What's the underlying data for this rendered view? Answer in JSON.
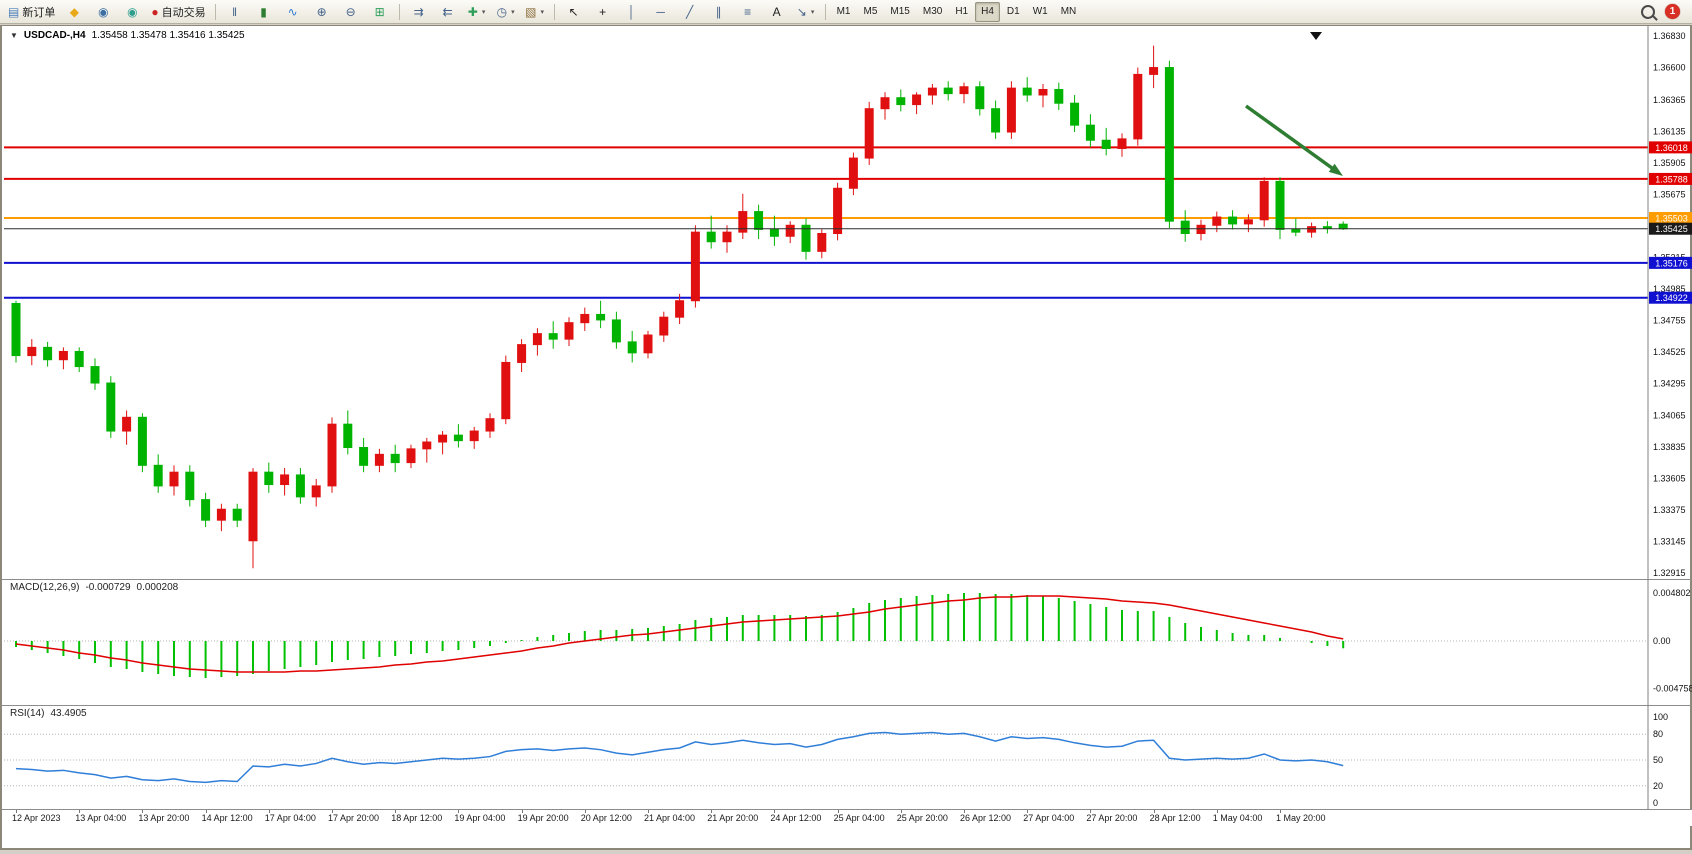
{
  "toolbar": {
    "notification_count": "1",
    "timeframes": [
      "M1",
      "M5",
      "M15",
      "M30",
      "H1",
      "H4",
      "D1",
      "W1",
      "MN"
    ],
    "active_timeframe": "H4",
    "groups": [
      {
        "name": "trade",
        "items": [
          {
            "name": "new-order-button",
            "glyph": "▤",
            "color": "#4a7ebb",
            "label": "新订单"
          },
          {
            "name": "metaeditor-icon",
            "glyph": "◆",
            "color": "#e8a818",
            "label": ""
          },
          {
            "name": "community-icon",
            "glyph": "◉",
            "color": "#3a6ea5",
            "label": ""
          },
          {
            "name": "support-icon",
            "glyph": "◉",
            "color": "#2e9e8f",
            "label": ""
          },
          {
            "name": "autotrading-button",
            "glyph": "●",
            "color": "#cc2222",
            "label": "自动交易"
          }
        ]
      },
      {
        "name": "chart-mode",
        "items": [
          {
            "name": "bar-chart-icon",
            "glyph": "‖",
            "color": "#44628a",
            "label": ""
          },
          {
            "name": "candlestick-chart-icon",
            "glyph": "▮",
            "color": "#2e7d32",
            "label": ""
          },
          {
            "name": "line-chart-icon",
            "glyph": "∿",
            "color": "#2f7ed8",
            "label": ""
          },
          {
            "name": "zoom-in-icon",
            "glyph": "⊕",
            "color": "#44628a",
            "label": ""
          },
          {
            "name": "zoom-out-icon",
            "glyph": "⊖",
            "color": "#44628a",
            "label": ""
          },
          {
            "name": "tile-windows-icon",
            "glyph": "⊞",
            "color": "#2e9e5b",
            "label": ""
          }
        ]
      },
      {
        "name": "chart-nav",
        "items": [
          {
            "name": "auto-scroll-icon",
            "glyph": "⇉",
            "color": "#44628a",
            "label": ""
          },
          {
            "name": "chart-shift-icon",
            "glyph": "⇇",
            "color": "#44628a",
            "label": ""
          },
          {
            "name": "indicators-icon",
            "glyph": "✚",
            "color": "#2e9e5b",
            "label": "",
            "caret": true
          },
          {
            "name": "periods-icon",
            "glyph": "◷",
            "color": "#44628a",
            "label": "",
            "caret": true
          },
          {
            "name": "templates-icon",
            "glyph": "▧",
            "color": "#8a6d3b",
            "label": "",
            "caret": true
          }
        ]
      },
      {
        "name": "drawing-tools",
        "items": [
          {
            "name": "cursor-icon",
            "glyph": "↖",
            "color": "#222222",
            "label": ""
          },
          {
            "name": "crosshair-icon",
            "glyph": "+",
            "color": "#222222",
            "label": ""
          },
          {
            "name": "vertical-line-icon",
            "glyph": "│",
            "color": "#44628a",
            "label": ""
          },
          {
            "name": "horizontal-line-icon",
            "glyph": "─",
            "color": "#44628a",
            "label": ""
          },
          {
            "name": "trendline-icon",
            "glyph": "╱",
            "color": "#44628a",
            "label": ""
          },
          {
            "name": "channel-icon",
            "glyph": "∥",
            "color": "#44628a",
            "label": ""
          },
          {
            "name": "fibonacci-icon",
            "glyph": "≡",
            "color": "#44628a",
            "label": ""
          },
          {
            "name": "text-icon",
            "glyph": "A",
            "color": "#222222",
            "label": ""
          },
          {
            "name": "arrows-tool-icon",
            "glyph": "↘",
            "color": "#44628a",
            "label": "",
            "caret": true
          }
        ]
      }
    ]
  },
  "chart": {
    "symbol_period": "USDCAD-,H4",
    "ohlc_text": "1.35458 1.35478 1.35416 1.35425",
    "price_max": 1.3683,
    "price_min": 1.32915,
    "price_axis": [
      "1.36830",
      "1.36600",
      "1.36365",
      "1.36135",
      "1.35905",
      "1.35675",
      "1.35445",
      "1.35215",
      "1.34985",
      "1.34755",
      "1.34525",
      "1.34295",
      "1.34065",
      "1.33835",
      "1.33605",
      "1.33375",
      "1.33145",
      "1.32915"
    ],
    "colors": {
      "up": "#e01010",
      "down": "#00b300",
      "current_line": "#2b2b2b",
      "axis": "#808080"
    },
    "hlines": [
      {
        "price": 1.36018,
        "label": "1.36018",
        "color": "#e00000"
      },
      {
        "price": 1.35788,
        "label": "1.35788",
        "color": "#e00000"
      },
      {
        "price": 1.35503,
        "label": "1.35503",
        "color": "#ff9c00"
      },
      {
        "price": 1.35176,
        "label": "1.35176",
        "color": "#1010d0"
      },
      {
        "price": 1.34922,
        "label": "1.34922",
        "color": "#1010d0"
      }
    ],
    "current_price": {
      "price": 1.35425,
      "label": "1.35425"
    },
    "annotation_arrow": {
      "direction": "down-right",
      "color": "#2e7d32"
    },
    "chart_data": {
      "type": "candlestick",
      "symbol": "USDCAD",
      "period": "H4",
      "ohlc_fields": [
        "open",
        "high",
        "low",
        "close"
      ],
      "candles": [
        [
          1.3488,
          1.349,
          1.3445,
          1.345
        ],
        [
          1.345,
          1.3462,
          1.3443,
          1.3456
        ],
        [
          1.3456,
          1.346,
          1.3442,
          1.3447
        ],
        [
          1.3447,
          1.3456,
          1.344,
          1.3453
        ],
        [
          1.3453,
          1.3456,
          1.3438,
          1.3442
        ],
        [
          1.3442,
          1.3448,
          1.3425,
          1.343
        ],
        [
          1.343,
          1.3435,
          1.339,
          1.3395
        ],
        [
          1.3395,
          1.341,
          1.3385,
          1.3405
        ],
        [
          1.3405,
          1.3408,
          1.3365,
          1.337
        ],
        [
          1.337,
          1.3378,
          1.335,
          1.3355
        ],
        [
          1.3355,
          1.337,
          1.3348,
          1.3365
        ],
        [
          1.3365,
          1.337,
          1.334,
          1.3345
        ],
        [
          1.3345,
          1.335,
          1.3325,
          1.333
        ],
        [
          1.333,
          1.3342,
          1.3322,
          1.3338
        ],
        [
          1.3338,
          1.3342,
          1.3325,
          1.333
        ],
        [
          1.3315,
          1.3368,
          1.3295,
          1.3365
        ],
        [
          1.3365,
          1.3372,
          1.335,
          1.3356
        ],
        [
          1.3356,
          1.3368,
          1.3348,
          1.3363
        ],
        [
          1.3363,
          1.3368,
          1.3342,
          1.3347
        ],
        [
          1.3347,
          1.336,
          1.334,
          1.3355
        ],
        [
          1.3355,
          1.3405,
          1.335,
          1.34
        ],
        [
          1.34,
          1.341,
          1.3378,
          1.3383
        ],
        [
          1.3383,
          1.339,
          1.3365,
          1.337
        ],
        [
          1.337,
          1.3382,
          1.3365,
          1.3378
        ],
        [
          1.3378,
          1.3385,
          1.3365,
          1.3372
        ],
        [
          1.3372,
          1.3385,
          1.3368,
          1.3382
        ],
        [
          1.3382,
          1.339,
          1.3372,
          1.3387
        ],
        [
          1.3387,
          1.3395,
          1.3378,
          1.3392
        ],
        [
          1.3392,
          1.34,
          1.3383,
          1.3388
        ],
        [
          1.3388,
          1.3398,
          1.3382,
          1.3395
        ],
        [
          1.3395,
          1.3408,
          1.339,
          1.3404
        ],
        [
          1.3404,
          1.345,
          1.34,
          1.3445
        ],
        [
          1.3445,
          1.3462,
          1.3438,
          1.3458
        ],
        [
          1.3458,
          1.347,
          1.345,
          1.3466
        ],
        [
          1.3466,
          1.3475,
          1.3455,
          1.3462
        ],
        [
          1.3462,
          1.3478,
          1.3457,
          1.3474
        ],
        [
          1.3474,
          1.3485,
          1.3468,
          1.348
        ],
        [
          1.348,
          1.349,
          1.347,
          1.3476
        ],
        [
          1.3476,
          1.3482,
          1.3455,
          1.346
        ],
        [
          1.346,
          1.3468,
          1.3445,
          1.3452
        ],
        [
          1.3452,
          1.3468,
          1.3448,
          1.3465
        ],
        [
          1.3465,
          1.3482,
          1.346,
          1.3478
        ],
        [
          1.3478,
          1.3495,
          1.3473,
          1.349
        ],
        [
          1.349,
          1.3545,
          1.3485,
          1.354
        ],
        [
          1.354,
          1.3552,
          1.3528,
          1.3533
        ],
        [
          1.3533,
          1.3545,
          1.3525,
          1.354
        ],
        [
          1.354,
          1.3568,
          1.3535,
          1.3555
        ],
        [
          1.3555,
          1.356,
          1.3535,
          1.3542
        ],
        [
          1.3542,
          1.3552,
          1.353,
          1.3537
        ],
        [
          1.3537,
          1.3548,
          1.3532,
          1.3545
        ],
        [
          1.3545,
          1.355,
          1.352,
          1.3526
        ],
        [
          1.3526,
          1.3542,
          1.3521,
          1.3539
        ],
        [
          1.3539,
          1.3576,
          1.3534,
          1.3572
        ],
        [
          1.3572,
          1.3598,
          1.3567,
          1.3594
        ],
        [
          1.3594,
          1.3635,
          1.3589,
          1.363
        ],
        [
          1.363,
          1.3642,
          1.3622,
          1.3638
        ],
        [
          1.3638,
          1.3644,
          1.3628,
          1.3633
        ],
        [
          1.3633,
          1.3642,
          1.3626,
          1.364
        ],
        [
          1.364,
          1.3648,
          1.3633,
          1.3645
        ],
        [
          1.3645,
          1.365,
          1.3636,
          1.3641
        ],
        [
          1.3641,
          1.3649,
          1.3634,
          1.3646
        ],
        [
          1.3646,
          1.365,
          1.3625,
          1.363
        ],
        [
          1.363,
          1.3636,
          1.3608,
          1.3613
        ],
        [
          1.3613,
          1.365,
          1.3608,
          1.3645
        ],
        [
          1.3645,
          1.3653,
          1.3635,
          1.364
        ],
        [
          1.364,
          1.3648,
          1.3631,
          1.3644
        ],
        [
          1.3644,
          1.3649,
          1.3629,
          1.3634
        ],
        [
          1.3634,
          1.364,
          1.3613,
          1.3618
        ],
        [
          1.3618,
          1.3626,
          1.3602,
          1.3607
        ],
        [
          1.3607,
          1.3616,
          1.3596,
          1.3601
        ],
        [
          1.3601,
          1.3612,
          1.3595,
          1.3608
        ],
        [
          1.3608,
          1.366,
          1.3603,
          1.3655
        ],
        [
          1.3655,
          1.3676,
          1.3645,
          1.366
        ],
        [
          1.366,
          1.3665,
          1.3543,
          1.3548
        ],
        [
          1.3548,
          1.3556,
          1.3533,
          1.3539
        ],
        [
          1.3539,
          1.3549,
          1.3534,
          1.3545
        ],
        [
          1.3545,
          1.3555,
          1.354,
          1.3551
        ],
        [
          1.3551,
          1.3556,
          1.3542,
          1.3546
        ],
        [
          1.3546,
          1.3553,
          1.354,
          1.3549
        ],
        [
          1.3549,
          1.358,
          1.3544,
          1.3577
        ],
        [
          1.3577,
          1.358,
          1.3535,
          1.3542
        ],
        [
          1.3542,
          1.355,
          1.3537,
          1.354
        ],
        [
          1.354,
          1.3547,
          1.3536,
          1.3544
        ],
        [
          1.3544,
          1.3548,
          1.3539,
          1.3543
        ],
        [
          1.35458,
          1.35478,
          1.35416,
          1.35425
        ]
      ]
    }
  },
  "macd": {
    "name": "MACD(12,26,9)",
    "main_value": "-0.000729",
    "signal_value": "0.000208",
    "axis": [
      "0.004802",
      "0.00",
      "-0.004758"
    ],
    "histogram_color": "#00c000",
    "signal_color": "#e00000",
    "chart_data": {
      "type": "bar",
      "histogram": [
        -0.0006,
        -0.0009,
        -0.0012,
        -0.0015,
        -0.0018,
        -0.0022,
        -0.0026,
        -0.0028,
        -0.0031,
        -0.0033,
        -0.0035,
        -0.0036,
        -0.0037,
        -0.0036,
        -0.0035,
        -0.0033,
        -0.003,
        -0.0028,
        -0.0026,
        -0.0024,
        -0.0021,
        -0.0019,
        -0.0018,
        -0.0016,
        -0.0015,
        -0.0013,
        -0.0012,
        -0.001,
        -0.0009,
        -0.0007,
        -0.0005,
        -0.0002,
        0.0001,
        0.0004,
        0.0006,
        0.0008,
        0.001,
        0.0011,
        0.0011,
        0.0012,
        0.0013,
        0.0015,
        0.0017,
        0.0021,
        0.0023,
        0.0024,
        0.0026,
        0.0026,
        0.0026,
        0.0026,
        0.0025,
        0.0026,
        0.0029,
        0.0033,
        0.0038,
        0.0041,
        0.0043,
        0.0045,
        0.0046,
        0.0047,
        0.0048,
        0.0048,
        0.0047,
        0.0047,
        0.0046,
        0.0045,
        0.0043,
        0.004,
        0.0037,
        0.0034,
        0.0031,
        0.003,
        0.003,
        0.0024,
        0.0018,
        0.0014,
        0.0011,
        0.0008,
        0.0006,
        0.0006,
        0.0003,
        0.0,
        -0.0002,
        -0.0005,
        -0.000729
      ],
      "signal": [
        -0.0003,
        -0.0005,
        -0.0007,
        -0.0009,
        -0.0012,
        -0.0014,
        -0.0017,
        -0.0019,
        -0.0022,
        -0.0024,
        -0.0026,
        -0.0028,
        -0.0029,
        -0.003,
        -0.0031,
        -0.0031,
        -0.0031,
        -0.0031,
        -0.003,
        -0.003,
        -0.0029,
        -0.0028,
        -0.0027,
        -0.0026,
        -0.0024,
        -0.0023,
        -0.0021,
        -0.002,
        -0.0018,
        -0.0016,
        -0.0014,
        -0.0012,
        -0.001,
        -0.0007,
        -0.0005,
        -0.0002,
        0.0,
        0.0002,
        0.0004,
        0.0006,
        0.0007,
        0.0009,
        0.0011,
        0.0013,
        0.0015,
        0.0017,
        0.0019,
        0.002,
        0.0021,
        0.0022,
        0.0023,
        0.0024,
        0.0025,
        0.0027,
        0.0029,
        0.0032,
        0.0034,
        0.0036,
        0.0038,
        0.004,
        0.0041,
        0.0043,
        0.0044,
        0.0044,
        0.0045,
        0.0045,
        0.0045,
        0.0044,
        0.0043,
        0.0042,
        0.004,
        0.0039,
        0.0038,
        0.0036,
        0.0033,
        0.003,
        0.0027,
        0.0024,
        0.0021,
        0.0018,
        0.0015,
        0.0012,
        0.0009,
        0.0005,
        0.000208
      ]
    }
  },
  "rsi": {
    "name": "RSI(14)",
    "value": "43.4905",
    "axis": [
      "100",
      "80",
      "50",
      "20",
      "0"
    ],
    "levels": [
      80,
      50,
      20
    ],
    "line_color": "#2f7ed8",
    "chart_data": {
      "type": "line",
      "values": [
        40,
        39,
        37,
        38,
        35,
        33,
        29,
        31,
        27,
        26,
        28,
        25,
        24,
        26,
        25,
        43,
        42,
        45,
        43,
        46,
        52,
        48,
        45,
        47,
        46,
        48,
        50,
        52,
        51,
        52,
        54,
        60,
        62,
        63,
        61,
        63,
        64,
        62,
        58,
        56,
        59,
        62,
        64,
        71,
        68,
        70,
        73,
        70,
        68,
        69,
        65,
        68,
        74,
        77,
        81,
        82,
        80,
        81,
        82,
        80,
        81,
        77,
        72,
        77,
        75,
        76,
        74,
        70,
        67,
        65,
        66,
        72,
        73,
        52,
        50,
        51,
        52,
        51,
        52,
        57,
        50,
        49,
        50,
        48,
        43.49
      ]
    }
  },
  "time_axis": [
    "12 Apr 2023",
    "13 Apr 04:00",
    "13 Apr 20:00",
    "14 Apr 12:00",
    "17 Apr 04:00",
    "17 Apr 20:00",
    "18 Apr 12:00",
    "19 Apr 04:00",
    "19 Apr 20:00",
    "20 Apr 12:00",
    "21 Apr 04:00",
    "21 Apr 20:00",
    "24 Apr 12:00",
    "25 Apr 04:00",
    "25 Apr 20:00",
    "26 Apr 12:00",
    "27 Apr 04:00",
    "27 Apr 20:00",
    "28 Apr 12:00",
    "1 May 04:00",
    "1 May 20:00"
  ]
}
